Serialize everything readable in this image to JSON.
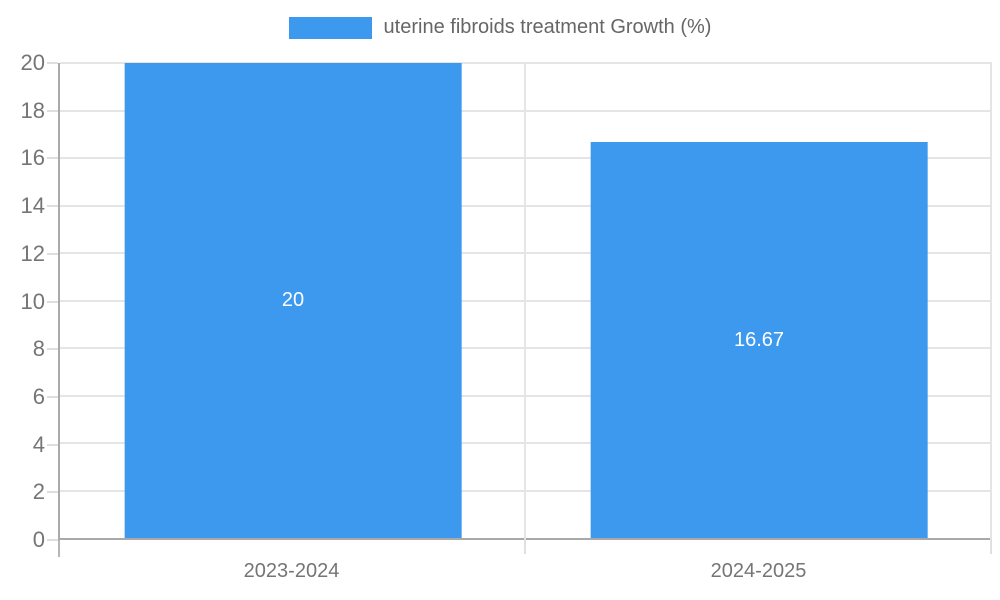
{
  "legend": {
    "label": "uterine fibroids treatment Growth (%)"
  },
  "colors": {
    "bar": "#3C99EE",
    "grid": "#e5e5e5",
    "axis": "#a9a9a9",
    "tick_text": "#757575",
    "legend_text": "#666666",
    "bar_label_text": "#ffffff",
    "background": "#ffffff"
  },
  "chart_data": {
    "type": "bar",
    "title": "uterine fibroids treatment Growth (%)",
    "categories": [
      "2023-2024",
      "2024-2025"
    ],
    "values": [
      20,
      16.67
    ],
    "value_labels": [
      "20",
      "16.67"
    ],
    "xlabel": "",
    "ylabel": "",
    "ylim": [
      0,
      20
    ],
    "ytick_step": 2,
    "ytick_values": [
      0,
      2,
      4,
      6,
      8,
      10,
      12,
      14,
      16,
      18,
      20
    ],
    "ytick_labels": [
      "0",
      "2",
      "4",
      "6",
      "8",
      "10",
      "12",
      "14",
      "16",
      "18",
      "20"
    ],
    "grid": true,
    "legend_position": "top",
    "bar_color": "#3C99EE",
    "value_label_position": "center-inside"
  }
}
